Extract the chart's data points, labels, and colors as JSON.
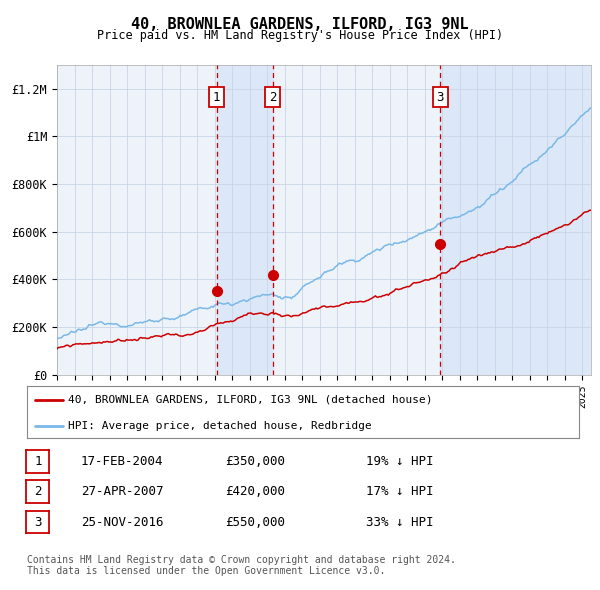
{
  "title": "40, BROWNLEA GARDENS, ILFORD, IG3 9NL",
  "subtitle": "Price paid vs. HM Land Registry's House Price Index (HPI)",
  "background_color": "#ffffff",
  "plot_bg_color": "#eef3fa",
  "grid_color": "#c8d4e8",
  "hpi_color": "#7ab8e8",
  "price_color": "#cc0000",
  "sale_marker_color": "#cc0000",
  "dashed_line_color": "#cc0000",
  "shade_color": "#dce8f7",
  "ylim": [
    0,
    1300000
  ],
  "yticks": [
    0,
    200000,
    400000,
    600000,
    800000,
    1000000,
    1200000
  ],
  "ytick_labels": [
    "£0",
    "£200K",
    "£400K",
    "£600K",
    "£800K",
    "£1M",
    "£1.2M"
  ],
  "sale_dates_num": [
    2004.12,
    2007.32,
    2016.9
  ],
  "sale_prices": [
    350000,
    420000,
    550000
  ],
  "sale_labels": [
    "1",
    "2",
    "3"
  ],
  "legend_price_label": "40, BROWNLEA GARDENS, ILFORD, IG3 9NL (detached house)",
  "legend_hpi_label": "HPI: Average price, detached house, Redbridge",
  "table_rows": [
    [
      "1",
      "17-FEB-2004",
      "£350,000",
      "19% ↓ HPI"
    ],
    [
      "2",
      "27-APR-2007",
      "£420,000",
      "17% ↓ HPI"
    ],
    [
      "3",
      "25-NOV-2016",
      "£550,000",
      "33% ↓ HPI"
    ]
  ],
  "footnote": "Contains HM Land Registry data © Crown copyright and database right 2024.\nThis data is licensed under the Open Government Licence v3.0.",
  "xstart": 1995.0,
  "xend": 2025.5
}
